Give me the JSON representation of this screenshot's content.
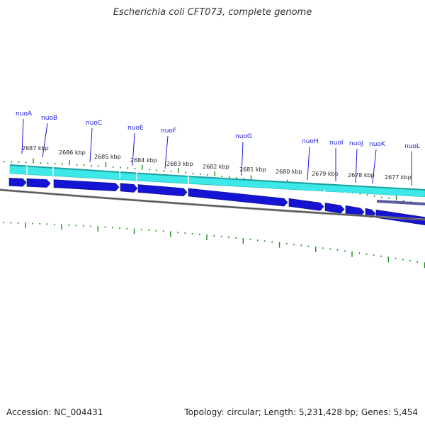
{
  "title": "Escherichia coli CFT073, complete genome",
  "accession": "Accession: NC_004431",
  "summary": "Topology: circular; Length: 5,231,428 bp; Genes: 5,454",
  "colors": {
    "tick": "#1e8c1e",
    "backbone": "#808080",
    "cds_fill": "#1414d2",
    "gene_fill": "#3ee8e8",
    "gene_label": "#1a1ad6"
  },
  "scale_labels": [
    "2687 kbp",
    "2686 kbp",
    "2685 kbp",
    "2684 kbp",
    "2683 kbp",
    "2682 kbp",
    "2681 kbp",
    "2680 kbp",
    "2679 kbp",
    "2678 kbp",
    "2677 kbp"
  ],
  "genes": [
    "nuoA",
    "nuoB",
    "nuoC",
    "nuoE",
    "nuoF",
    "nuoG",
    "nuoH",
    "nuoI",
    "nuoJ",
    "nuoK",
    "nuoL"
  ]
}
